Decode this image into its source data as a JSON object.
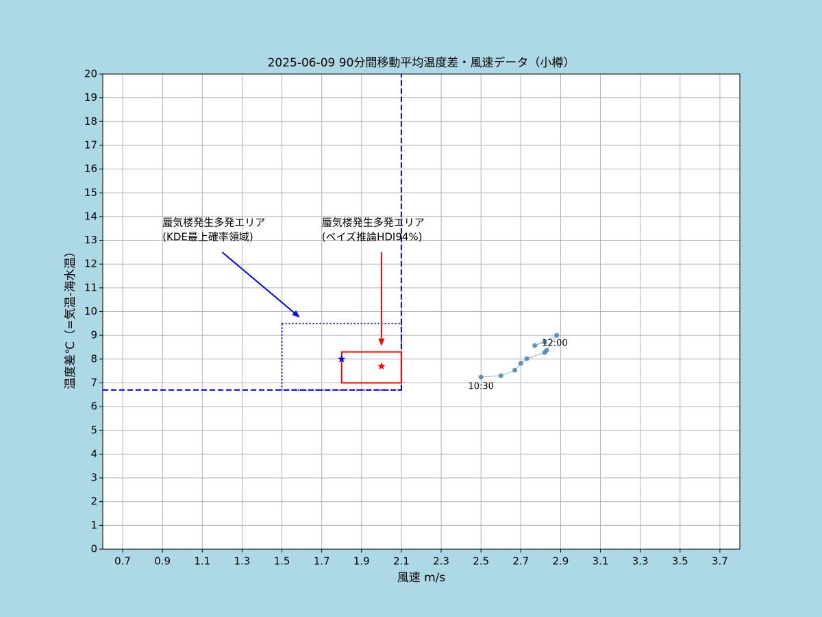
{
  "chart_data": {
    "type": "line",
    "title": "2025-06-09  90分間移動平均温度差・風速データ（小樽）",
    "xlabel": "風速 m/s",
    "ylabel": "温度差℃（=気温-海水温）",
    "x": [
      2.5,
      2.6,
      2.67,
      2.7,
      2.73,
      2.82,
      2.83,
      2.88,
      2.77,
      2.82
    ],
    "series": [
      {
        "color": "#4682b4",
        "values": [
          7.24,
          7.3,
          7.53,
          7.82,
          8.02,
          8.28,
          8.37,
          9.0,
          8.57,
          8.72
        ]
      }
    ],
    "point_labels": [
      "10:30",
      null,
      null,
      null,
      null,
      null,
      null,
      null,
      null,
      "12:00"
    ],
    "xlim": [
      0.6,
      3.8
    ],
    "ylim": [
      0,
      20
    ],
    "xticks": [
      0.7,
      0.9,
      1.1,
      1.3,
      1.5,
      1.7,
      1.9,
      2.1,
      2.3,
      2.5,
      2.7,
      2.9,
      3.1,
      3.3,
      3.5,
      3.7
    ],
    "yticks": [
      0,
      1,
      2,
      3,
      4,
      5,
      6,
      7,
      8,
      9,
      10,
      11,
      12,
      13,
      14,
      15,
      16,
      17,
      18,
      19,
      20
    ],
    "grid": true,
    "hlines": [
      {
        "y": 6.7,
        "xmin": 0.6,
        "xmax": 2.1,
        "color": "#0000ff"
      }
    ],
    "vlines": [
      {
        "x": 2.1,
        "ymin": 6.7,
        "ymax": 20,
        "color": "#0000ff"
      }
    ],
    "rectangles": [
      {
        "x0": 1.5,
        "x1": 2.1,
        "y0": 6.7,
        "y1": 9.5,
        "color": "#0000ff",
        "style": "dotted"
      },
      {
        "x0": 1.8,
        "x1": 2.1,
        "y0": 7.0,
        "y1": 8.3,
        "color": "#ff0000",
        "style": "solid"
      }
    ],
    "stars": [
      {
        "x": 1.8,
        "y": 8.0,
        "color": "#0000ff"
      },
      {
        "x": 2.0,
        "y": 7.7,
        "color": "#ff0000"
      }
    ],
    "annotations": [
      {
        "text": [
          "蜃気楼発生多発エリア",
          "(KDE最上確率領域)"
        ],
        "text_x": 0.9,
        "text_y": 14.0,
        "arrow_from": [
          1.2,
          12.5
        ],
        "arrow_to": [
          1.59,
          9.75
        ],
        "color": "#0000ff"
      },
      {
        "text": [
          "蜃気楼発生多発エリア",
          "(ベイズ推論HDI94%)"
        ],
        "text_x": 1.7,
        "text_y": 14.0,
        "arrow_from": [
          2.0,
          12.5
        ],
        "arrow_to": [
          2.0,
          8.55
        ],
        "color": "#ff0000"
      }
    ]
  }
}
